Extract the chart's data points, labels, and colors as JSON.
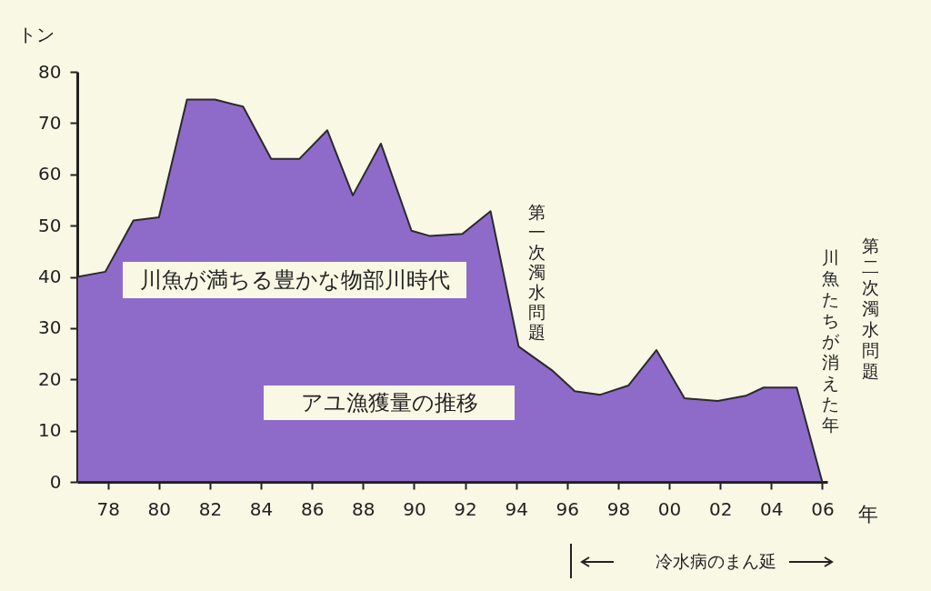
{
  "chart_data": {
    "type": "area",
    "ylabel": "トン",
    "xlabel": "年",
    "x": [
      1976.8,
      1977.9,
      1979.0,
      1980.0,
      1981.1,
      1982.2,
      1983.3,
      1984.4,
      1985.5,
      1986.6,
      1987.6,
      1988.7,
      1989.9,
      1990.6,
      1991.9,
      1993.0,
      1994.1,
      1995.4,
      1996.3,
      1997.3,
      1998.4,
      1999.5,
      2000.6,
      2001.9,
      2003.0,
      2003.7,
      2005.0,
      2006.0
    ],
    "values": [
      40,
      41,
      51,
      51.6,
      74.6,
      74.6,
      73.2,
      63,
      63,
      68.6,
      55.9,
      66,
      49,
      48,
      48.4,
      52.8,
      26.4,
      21.8,
      17.7,
      17,
      18.8,
      25.7,
      16.3,
      15.8,
      16.8,
      18.4,
      18.4,
      0
    ],
    "color": "#8e6bc9",
    "xlim": [
      1976.8,
      2006.2
    ],
    "ylim": [
      0,
      80
    ],
    "xticks": [
      {
        "value": 1978,
        "label": "78"
      },
      {
        "value": 1980,
        "label": "80"
      },
      {
        "value": 1982,
        "label": "82"
      },
      {
        "value": 1984,
        "label": "84"
      },
      {
        "value": 1986,
        "label": "86"
      },
      {
        "value": 1988,
        "label": "88"
      },
      {
        "value": 1990,
        "label": "90"
      },
      {
        "value": 1992,
        "label": "92"
      },
      {
        "value": 1994,
        "label": "94"
      },
      {
        "value": 1996,
        "label": "96"
      },
      {
        "value": 1998,
        "label": "98"
      },
      {
        "value": 2000,
        "label": "00"
      },
      {
        "value": 2002,
        "label": "02"
      },
      {
        "value": 2004,
        "label": "04"
      },
      {
        "value": 2006,
        "label": "06"
      }
    ],
    "yticks": [
      0,
      10,
      20,
      30,
      40,
      50,
      60,
      70,
      80
    ],
    "grid": false,
    "annotations": [
      "川魚が満ちる豊かな物部川時代",
      "第一次濁水問題",
      "第二次濁水問題",
      "川魚たちが消えた年",
      "冷水病のまん延",
      "アユ漁獲量の推移"
    ]
  }
}
